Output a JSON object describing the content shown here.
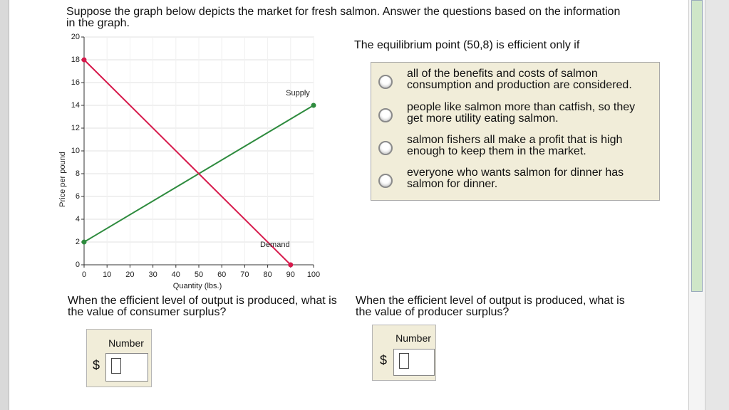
{
  "question": {
    "text": "Suppose the graph below depicts the market for fresh salmon. Answer the questions based on the information in the graph."
  },
  "chart_data": {
    "type": "line",
    "xlabel": "Quantity (lbs.)",
    "ylabel": "Price per pound",
    "xlim": [
      0,
      100
    ],
    "xticks": [
      0,
      10,
      20,
      30,
      40,
      50,
      60,
      70,
      80,
      90,
      100
    ],
    "ylim": [
      0,
      20
    ],
    "yticks": [
      0,
      2,
      4,
      6,
      8,
      10,
      12,
      14,
      16,
      18,
      20
    ],
    "grid": true,
    "series": [
      {
        "name": "Supply",
        "color": "#2e8b3e",
        "x": [
          0,
          100
        ],
        "values": [
          2,
          14
        ]
      },
      {
        "name": "Demand",
        "color": "#d6194b",
        "x": [
          0,
          90
        ],
        "values": [
          18,
          0
        ]
      }
    ]
  },
  "mc": {
    "prompt": "The equilibrium point (50,8) is efficient only if",
    "options": [
      "all of the benefits and costs of salmon consumption and production are considered.",
      "people like salmon more than catfish, so they get more utility eating salmon.",
      "salmon fishers all make a profit that is high enough to keep them in the market.",
      "everyone who wants salmon for dinner has salmon for dinner."
    ]
  },
  "answers": [
    {
      "question": "When the efficient level of output is produced, what is the value of consumer surplus?",
      "field_label": "Number",
      "currency": "$"
    },
    {
      "question": "When the efficient level of output is produced, what is the value of producer surplus?",
      "field_label": "Number",
      "currency": "$"
    }
  ]
}
